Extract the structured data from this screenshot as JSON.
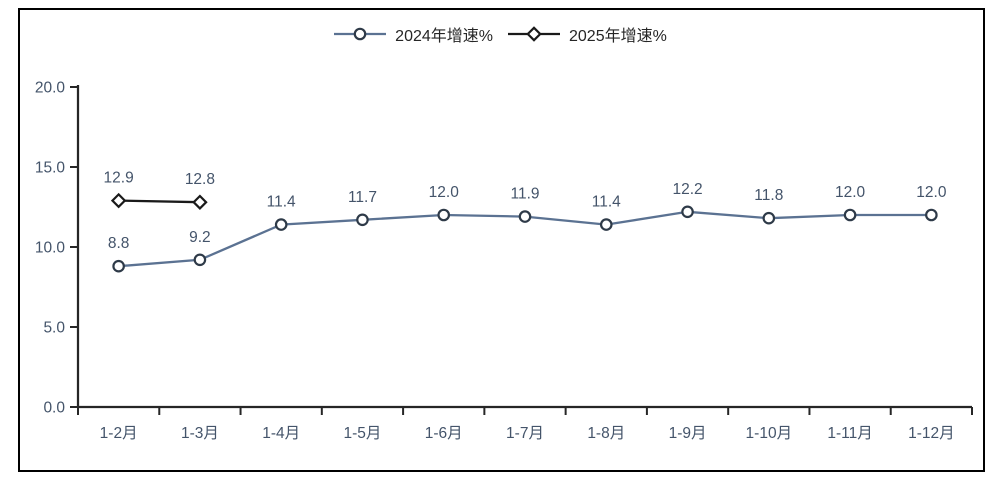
{
  "chart_data": {
    "type": "line",
    "title": "",
    "xlabel": "",
    "ylabel": "",
    "categories": [
      "1-2月",
      "1-3月",
      "1-4月",
      "1-5月",
      "1-6月",
      "1-7月",
      "1-8月",
      "1-9月",
      "1-10月",
      "1-11月",
      "1-12月"
    ],
    "series": [
      {
        "name": "2024年增速%",
        "marker": "circle",
        "color": "#5b7292",
        "marker_color": "#2e3a48",
        "values": [
          8.8,
          9.2,
          11.4,
          11.7,
          12.0,
          11.9,
          11.4,
          12.2,
          11.8,
          12.0,
          12.0
        ]
      },
      {
        "name": "2025年增速%",
        "marker": "diamond",
        "color": "#1a1a1a",
        "marker_color": "#1a1a1a",
        "values": [
          12.9,
          12.8
        ]
      }
    ],
    "ylim": [
      0,
      20
    ],
    "ytick_step": 5,
    "ytick_labels": [
      "0.0",
      "5.0",
      "10.0",
      "15.0",
      "20.0"
    ],
    "grid": false,
    "legend_position": "top",
    "data_labels": true
  },
  "colors": {
    "axis": "#262626",
    "tick_labels": "#44546a",
    "data_labels": "#44546a",
    "legend_text": "#262626",
    "marker_fill": "#ffffff",
    "border": "#000000"
  }
}
